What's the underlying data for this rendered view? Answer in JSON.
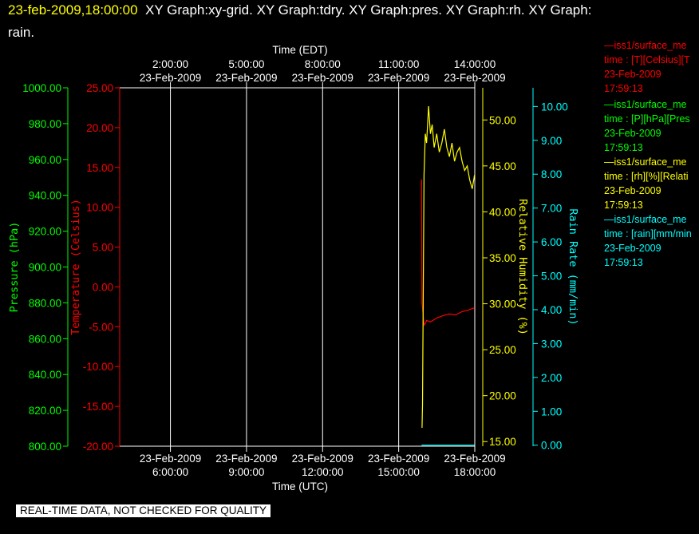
{
  "title": {
    "timestamp": "23-feb-2009,18:00:00",
    "line1_rest": "XY Graph:xy-grid.  XY Graph:tdry.  XY Graph:pres.  XY Graph:rh.  XY Graph:",
    "line2": "rain."
  },
  "colors": {
    "background": "#000000",
    "frame": "#ffffff",
    "pressure": "#00ff00",
    "temperature": "#ff0000",
    "humidity": "#ffff00",
    "rain": "#00ffff",
    "grid": "#ffffff"
  },
  "legend": [
    {
      "name": "—iss1/surface_me",
      "unit": "time : [T][Celsius][T",
      "date": "23-Feb-2009",
      "time": "17:59:13",
      "color": "#ff0000"
    },
    {
      "name": "—iss1/surface_me",
      "unit": "time : [P][hPa][Pres",
      "date": "23-Feb-2009",
      "time": "17:59:13",
      "color": "#00ff00"
    },
    {
      "name": "—iss1/surface_me",
      "unit": "time : [rh][%][Relati",
      "date": "23-Feb-2009",
      "time": "17:59:13",
      "color": "#ffff00"
    },
    {
      "name": "—iss1/surface_me",
      "unit": "time : [rain][mm/min",
      "date": "23-Feb-2009",
      "time": "17:59:13",
      "color": "#00ffff"
    }
  ],
  "disclaimer": "REAL-TIME DATA, NOT CHECKED FOR QUALITY",
  "chart_data": {
    "type": "line",
    "x_range_utc_hours": [
      4,
      18
    ],
    "grid": true,
    "x_axis_top": {
      "title": "Time (EDT)",
      "ticks": [
        {
          "hour": 6,
          "time": "2:00:00",
          "date": "23-Feb-2009"
        },
        {
          "hour": 9,
          "time": "5:00:00",
          "date": "23-Feb-2009"
        },
        {
          "hour": 12,
          "time": "8:00:00",
          "date": "23-Feb-2009"
        },
        {
          "hour": 15,
          "time": "11:00:00",
          "date": "23-Feb-2009"
        },
        {
          "hour": 18,
          "time": "14:00:00",
          "date": "23-Feb-2009"
        }
      ]
    },
    "x_axis_bottom": {
      "title": "Time (UTC)",
      "ticks": [
        {
          "hour": 6,
          "date": "23-Feb-2009",
          "time": "6:00:00"
        },
        {
          "hour": 9,
          "date": "23-Feb-2009",
          "time": "9:00:00"
        },
        {
          "hour": 12,
          "date": "23-Feb-2009",
          "time": "12:00:00"
        },
        {
          "hour": 15,
          "date": "23-Feb-2009",
          "time": "15:00:00"
        },
        {
          "hour": 18,
          "date": "23-Feb-2009",
          "time": "18:00:00"
        }
      ]
    },
    "axes": [
      {
        "id": "pressure",
        "label": "Pressure (hPa)",
        "color": "#00ff00",
        "range": [
          800,
          1000
        ],
        "ticks": [
          "800.00",
          "820.00",
          "840.00",
          "860.00",
          "880.00",
          "900.00",
          "920.00",
          "940.00",
          "960.00",
          "980.00",
          "1000.00"
        ]
      },
      {
        "id": "temperature",
        "label": "Temperature (Celsius)",
        "color": "#ff0000",
        "range": [
          -20,
          25
        ],
        "ticks": [
          "-20.00",
          "-15.00",
          "-10.00",
          "-5.00",
          "0.00",
          "5.00",
          "10.00",
          "15.00",
          "20.00",
          "25.00"
        ]
      },
      {
        "id": "humidity",
        "label": "Relative Humidity (%)",
        "color": "#ffff00",
        "range": [
          14.5,
          53.5
        ],
        "ticks": [
          "15.00",
          "20.00",
          "25.00",
          "30.00",
          "35.00",
          "40.00",
          "45.00",
          "50.00"
        ]
      },
      {
        "id": "rain",
        "label": "Rain Rate (mm/min)",
        "color": "#00ffff",
        "range": [
          -0.03,
          10.55
        ],
        "ticks": [
          "0.00",
          "1.00",
          "2.00",
          "3.00",
          "4.00",
          "5.00",
          "6.00",
          "7.00",
          "8.00",
          "9.00",
          "10.00"
        ]
      }
    ],
    "series": [
      {
        "name": "T",
        "axis": "temperature",
        "color": "#ff0000",
        "x": [
          15.9,
          15.9,
          15.92,
          16.0,
          16.05,
          16.1,
          16.25,
          16.5,
          16.75,
          17.0,
          17.25,
          17.5,
          17.75,
          17.99
        ],
        "y": [
          13.5,
          11.5,
          -2.0,
          -4.8,
          -4.6,
          -4.2,
          -4.4,
          -3.9,
          -3.6,
          -3.4,
          -3.5,
          -3.1,
          -2.9,
          -2.6
        ]
      },
      {
        "name": "rh",
        "axis": "humidity",
        "color": "#ffff00",
        "x": [
          15.92,
          15.94,
          16.0,
          16.05,
          16.1,
          16.18,
          16.25,
          16.32,
          16.4,
          16.5,
          16.6,
          16.7,
          16.8,
          16.9,
          17.0,
          17.1,
          17.2,
          17.3,
          17.4,
          17.5,
          17.6,
          17.7,
          17.8,
          17.9,
          17.99
        ],
        "y": [
          16.5,
          19.0,
          44.0,
          48.5,
          47.5,
          51.5,
          48.5,
          49.5,
          47.0,
          48.5,
          46.5,
          47.5,
          49.0,
          47.0,
          46.0,
          47.5,
          45.5,
          46.5,
          47.0,
          45.5,
          44.5,
          45.0,
          43.5,
          42.5,
          44.0
        ]
      },
      {
        "name": "P",
        "axis": "pressure",
        "color": "#00ff00",
        "x": [],
        "y": []
      },
      {
        "name": "rain",
        "axis": "rain",
        "color": "#00ffff",
        "x": [
          15.9,
          17.99
        ],
        "y": [
          0.0,
          0.0
        ]
      }
    ]
  }
}
